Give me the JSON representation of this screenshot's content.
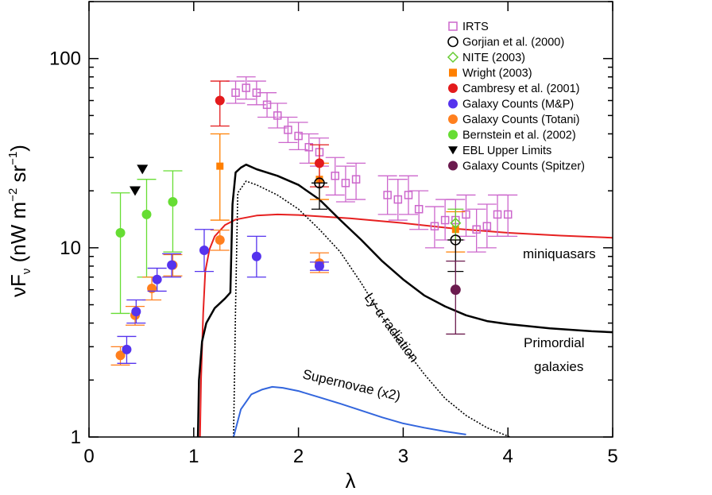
{
  "chart_data": {
    "type": "scatter",
    "xlabel": "λ",
    "ylabel_parts": [
      "νF",
      "ν",
      " (nW m",
      "−2",
      " sr",
      "−1",
      ")"
    ],
    "xlim": [
      0,
      5
    ],
    "ylim": [
      1,
      200
    ],
    "yscale": "log",
    "xticks": [
      0,
      1,
      2,
      3,
      4,
      5
    ],
    "xtick_labels": [
      "0",
      "1",
      "2",
      "3",
      "4",
      "5"
    ],
    "yticks": [
      1,
      10,
      100
    ],
    "ytick_labels": [
      "1",
      "10",
      "100"
    ],
    "grid": false,
    "legend_position": "top-right",
    "colors": {
      "irts": "#cc66cc",
      "gorjian": "#000000",
      "nite": "#66cc33",
      "wright": "#ff7f00",
      "cambresy": "#e31a1c",
      "mp": "#5533ee",
      "totani": "#ff7f1e",
      "bernstein": "#66dd33",
      "ebl": "#000000",
      "spitzer": "#6b1a4e",
      "miniquasars": "#e62020",
      "primordial": "#000000",
      "lya": "#000000",
      "supernovae": "#3366dd"
    },
    "legend": [
      {
        "label": "IRTS",
        "marker": "open-square",
        "color_key": "irts"
      },
      {
        "label": "Gorjian et al. (2000)",
        "marker": "open-circle",
        "color_key": "gorjian"
      },
      {
        "label": "NITE (2003)",
        "marker": "open-diamond",
        "color_key": "nite"
      },
      {
        "label": "Wright (2003)",
        "marker": "filled-square",
        "color_key": "wright"
      },
      {
        "label": "Cambresy et al. (2001)",
        "marker": "filled-circle",
        "color_key": "cambresy"
      },
      {
        "label": "Galaxy Counts (M&P)",
        "marker": "filled-circle",
        "color_key": "mp"
      },
      {
        "label": "Galaxy Counts (Totani)",
        "marker": "filled-circle",
        "color_key": "totani"
      },
      {
        "label": "Bernstein et al. (2002)",
        "marker": "filled-circle",
        "color_key": "bernstein"
      },
      {
        "label": "EBL Upper Limits",
        "marker": "down-triangle",
        "color_key": "ebl"
      },
      {
        "label": "Galaxy Counts (Spitzer)",
        "marker": "filled-circle",
        "color_key": "spitzer"
      }
    ],
    "points": {
      "irts": [
        {
          "x": 1.4,
          "y": 66,
          "lo": 58,
          "hi": 76
        },
        {
          "x": 1.5,
          "y": 70,
          "lo": 61,
          "hi": 80
        },
        {
          "x": 1.6,
          "y": 66,
          "lo": 57,
          "hi": 76
        },
        {
          "x": 1.7,
          "y": 57,
          "lo": 49,
          "hi": 66
        },
        {
          "x": 1.8,
          "y": 50,
          "lo": 43,
          "hi": 58
        },
        {
          "x": 1.9,
          "y": 42,
          "lo": 36,
          "hi": 49
        },
        {
          "x": 2.0,
          "y": 39,
          "lo": 33,
          "hi": 46
        },
        {
          "x": 2.1,
          "y": 34,
          "lo": 28,
          "hi": 40
        },
        {
          "x": 2.2,
          "y": 32,
          "lo": 27,
          "hi": 38
        },
        {
          "x": 2.35,
          "y": 24,
          "lo": 19,
          "hi": 30
        },
        {
          "x": 2.45,
          "y": 22,
          "lo": 17.5,
          "hi": 27
        },
        {
          "x": 2.55,
          "y": 23,
          "lo": 18,
          "hi": 28
        },
        {
          "x": 2.85,
          "y": 19,
          "lo": 15,
          "hi": 24
        },
        {
          "x": 2.95,
          "y": 18,
          "lo": 14,
          "hi": 23
        },
        {
          "x": 3.05,
          "y": 19,
          "lo": 15,
          "hi": 24
        },
        {
          "x": 3.15,
          "y": 16,
          "lo": 12.5,
          "hi": 20
        },
        {
          "x": 3.3,
          "y": 13,
          "lo": 10,
          "hi": 16.5
        },
        {
          "x": 3.4,
          "y": 14,
          "lo": 11,
          "hi": 18
        },
        {
          "x": 3.5,
          "y": 14,
          "lo": 11,
          "hi": 18
        },
        {
          "x": 3.6,
          "y": 15,
          "lo": 11.5,
          "hi": 19
        },
        {
          "x": 3.7,
          "y": 12.5,
          "lo": 9.5,
          "hi": 16
        },
        {
          "x": 3.8,
          "y": 13,
          "lo": 10,
          "hi": 17
        },
        {
          "x": 3.9,
          "y": 15,
          "lo": 11.5,
          "hi": 19
        },
        {
          "x": 4.0,
          "y": 15,
          "lo": 11.5,
          "hi": 19
        }
      ],
      "gorjian": [
        {
          "x": 2.2,
          "y": 22,
          "lo": 16,
          "hi": 22
        },
        {
          "x": 3.5,
          "y": 11,
          "lo": 7.5,
          "hi": 11
        }
      ],
      "nite": [
        {
          "x": 3.5,
          "y": 13.5,
          "lo": 11,
          "hi": 16
        }
      ],
      "wright": [
        {
          "x": 1.25,
          "y": 27,
          "lo": 14,
          "hi": 40
        },
        {
          "x": 2.2,
          "y": 23,
          "lo": 18,
          "hi": 28
        },
        {
          "x": 3.5,
          "y": 12.5,
          "lo": 9.5,
          "hi": 15.5
        }
      ],
      "cambresy": [
        {
          "x": 1.25,
          "y": 60,
          "lo": 44,
          "hi": 76
        },
        {
          "x": 2.2,
          "y": 28,
          "lo": 21,
          "hi": 35
        }
      ],
      "mp": [
        {
          "x": 0.36,
          "y": 2.9,
          "lo": 2.45,
          "hi": 3.4
        },
        {
          "x": 0.45,
          "y": 4.6,
          "lo": 4.0,
          "hi": 5.3
        },
        {
          "x": 0.65,
          "y": 6.8,
          "lo": 5.9,
          "hi": 7.8
        },
        {
          "x": 0.79,
          "y": 8.1,
          "lo": 7.0,
          "hi": 9.3
        },
        {
          "x": 1.1,
          "y": 9.7,
          "lo": 7.5,
          "hi": 12.5
        },
        {
          "x": 1.6,
          "y": 9.0,
          "lo": 7.0,
          "hi": 11.5
        },
        {
          "x": 2.2,
          "y": 8.0,
          "lo": 7.6,
          "hi": 8.4
        }
      ],
      "totani": [
        {
          "x": 0.3,
          "y": 2.7,
          "lo": 2.4,
          "hi": 3.0
        },
        {
          "x": 0.44,
          "y": 4.4,
          "lo": 3.9,
          "hi": 4.9
        },
        {
          "x": 0.6,
          "y": 6.1,
          "lo": 5.3,
          "hi": 7.0
        },
        {
          "x": 0.8,
          "y": 8.1,
          "lo": 7.1,
          "hi": 9.2
        },
        {
          "x": 1.25,
          "y": 11.0,
          "lo": 9.7,
          "hi": 12.4
        },
        {
          "x": 2.2,
          "y": 8.3,
          "lo": 7.4,
          "hi": 9.4
        }
      ],
      "bernstein": [
        {
          "x": 0.3,
          "y": 12,
          "lo": 4.5,
          "hi": 19.5
        },
        {
          "x": 0.55,
          "y": 15,
          "lo": 7,
          "hi": 23
        },
        {
          "x": 0.8,
          "y": 17.5,
          "lo": 9.5,
          "hi": 25.5
        }
      ],
      "ebl": [
        {
          "x": 0.44,
          "y": 20
        },
        {
          "x": 0.51,
          "y": 26
        }
      ],
      "spitzer": [
        {
          "x": 3.5,
          "y": 6.0,
          "lo": 3.5,
          "hi": 8.5
        }
      ]
    },
    "curves": {
      "miniquasars": [
        [
          1.06,
          1.0
        ],
        [
          1.07,
          2.0
        ],
        [
          1.09,
          4.5
        ],
        [
          1.11,
          7.5
        ],
        [
          1.15,
          9.8
        ],
        [
          1.2,
          11.5
        ],
        [
          1.3,
          13.2
        ],
        [
          1.4,
          14.1
        ],
        [
          1.6,
          14.8
        ],
        [
          1.8,
          15.0
        ],
        [
          2.0,
          14.9
        ],
        [
          2.5,
          14.3
        ],
        [
          3.0,
          13.5
        ],
        [
          3.5,
          12.6
        ],
        [
          4.0,
          12.0
        ],
        [
          4.5,
          11.6
        ],
        [
          5.0,
          11.3
        ]
      ],
      "primordial": [
        [
          1.04,
          1.0
        ],
        [
          1.05,
          2.0
        ],
        [
          1.08,
          3.2
        ],
        [
          1.12,
          4.0
        ],
        [
          1.2,
          4.8
        ],
        [
          1.3,
          5.4
        ],
        [
          1.35,
          5.8
        ],
        [
          1.37,
          17
        ],
        [
          1.4,
          25
        ],
        [
          1.45,
          26.5
        ],
        [
          1.5,
          27.5
        ],
        [
          1.6,
          26
        ],
        [
          1.8,
          24
        ],
        [
          2.0,
          21.5
        ],
        [
          2.2,
          18
        ],
        [
          2.4,
          14
        ],
        [
          2.6,
          11
        ],
        [
          2.8,
          8.5
        ],
        [
          3.0,
          6.8
        ],
        [
          3.2,
          5.6
        ],
        [
          3.4,
          4.9
        ],
        [
          3.6,
          4.4
        ],
        [
          3.8,
          4.1
        ],
        [
          4.0,
          3.95
        ],
        [
          4.4,
          3.75
        ],
        [
          4.8,
          3.62
        ],
        [
          5.0,
          3.58
        ]
      ],
      "lya": [
        [
          1.38,
          1.0
        ],
        [
          1.4,
          5
        ],
        [
          1.42,
          19.5
        ],
        [
          1.5,
          22.5
        ],
        [
          1.6,
          21.5
        ],
        [
          1.8,
          19
        ],
        [
          2.0,
          16
        ],
        [
          2.2,
          12.5
        ],
        [
          2.4,
          9.5
        ],
        [
          2.6,
          6.5
        ],
        [
          2.8,
          4.3
        ],
        [
          3.0,
          3.0
        ],
        [
          3.2,
          2.15
        ],
        [
          3.4,
          1.6
        ],
        [
          3.6,
          1.3
        ],
        [
          3.8,
          1.12
        ],
        [
          4.02,
          1.0
        ]
      ],
      "supernovae": [
        [
          1.38,
          1.0
        ],
        [
          1.45,
          1.4
        ],
        [
          1.55,
          1.68
        ],
        [
          1.65,
          1.78
        ],
        [
          1.75,
          1.84
        ],
        [
          1.85,
          1.82
        ],
        [
          2.0,
          1.75
        ],
        [
          2.2,
          1.62
        ],
        [
          2.4,
          1.5
        ],
        [
          2.6,
          1.38
        ],
        [
          2.8,
          1.27
        ],
        [
          3.0,
          1.18
        ],
        [
          3.2,
          1.12
        ],
        [
          3.4,
          1.07
        ],
        [
          3.6,
          1.03
        ]
      ]
    },
    "annotations": [
      {
        "key": "miniquasars",
        "text": "miniquasars"
      },
      {
        "key": "primordial1",
        "text": "Primordial"
      },
      {
        "key": "primordial2",
        "text": "galaxies"
      },
      {
        "key": "lya",
        "text": "Ly-α radiation"
      },
      {
        "key": "supernovae",
        "text": "Supernovae (x2)"
      }
    ]
  }
}
